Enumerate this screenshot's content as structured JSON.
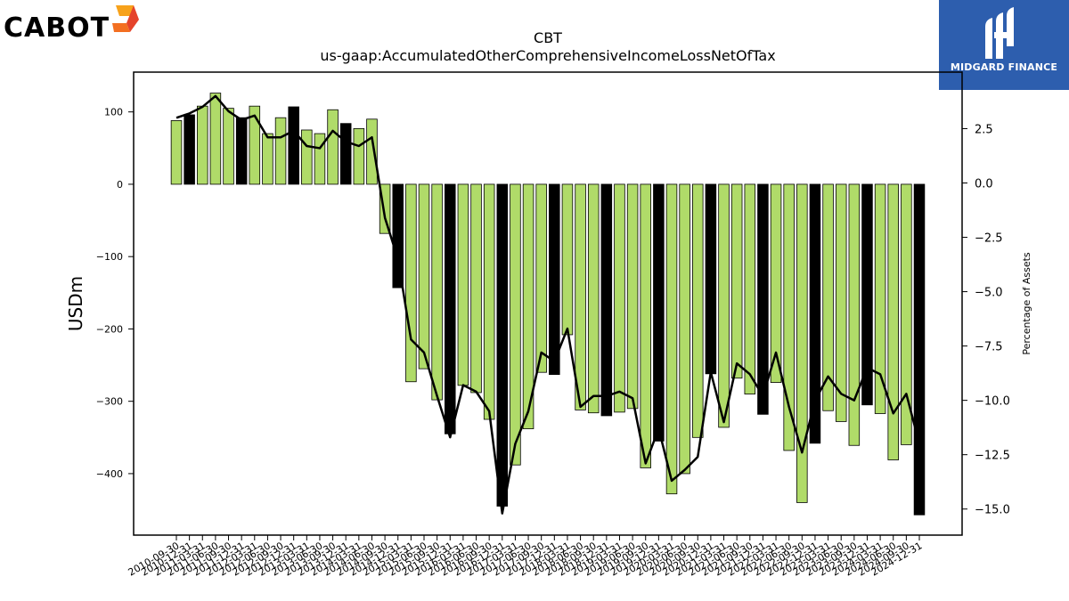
{
  "brand": {
    "left_logo": "CABOT",
    "right_logo": "MIDGARD FINANCE"
  },
  "colors": {
    "bar_normal": "#b0db69",
    "bar_q4": "#000000",
    "line": "#000000",
    "right_panel": "#2d5eae"
  },
  "chart_data": {
    "type": "bar",
    "title": "CBT",
    "subtitle": "us-gaap:AccumulatedOtherComprehensiveIncomeLossNetOfTax",
    "ylabel": "USDm",
    "y2label": "Percentage of Assets",
    "ylim": [
      -485,
      155
    ],
    "y2lim": [
      -16.2,
      5.1
    ],
    "yticks": [
      100,
      0,
      -100,
      -200,
      -300,
      -400
    ],
    "y2ticks": [
      2.5,
      0.0,
      -2.5,
      -5.0,
      -7.5,
      -10.0,
      -12.5,
      -15.0
    ],
    "grid": false,
    "categories": [
      "2010-09-30",
      "2010-12-31",
      "2011-03-31",
      "2011-06-30",
      "2011-09-30",
      "2011-12-31",
      "2012-03-31",
      "2012-06-30",
      "2012-09-30",
      "2012-12-31",
      "2013-03-31",
      "2013-06-30",
      "2013-09-30",
      "2013-12-31",
      "2014-03-31",
      "2014-06-30",
      "2014-09-30",
      "2014-12-31",
      "2015-03-31",
      "2015-06-30",
      "2015-09-30",
      "2015-12-31",
      "2016-03-31",
      "2016-06-30",
      "2016-09-30",
      "2016-12-31",
      "2017-03-31",
      "2017-06-30",
      "2017-09-30",
      "2017-12-31",
      "2018-03-31",
      "2018-06-30",
      "2018-09-30",
      "2018-12-31",
      "2019-03-31",
      "2019-06-30",
      "2019-09-30",
      "2019-12-31",
      "2020-03-31",
      "2020-06-30",
      "2020-09-30",
      "2020-12-31",
      "2021-03-31",
      "2021-06-30",
      "2021-09-30",
      "2021-12-31",
      "2022-03-31",
      "2022-06-30",
      "2022-09-30",
      "2022-12-31",
      "2023-03-31",
      "2023-06-30",
      "2023-09-30",
      "2023-12-31",
      "2024-03-31",
      "2024-06-30",
      "2024-09-30",
      "2024-12-31"
    ],
    "series": [
      {
        "values": [
          88,
          96,
          108,
          126,
          105,
          92,
          108,
          70,
          92,
          107,
          75,
          70,
          103,
          84,
          77,
          90,
          -68,
          -143,
          -273,
          -255,
          -298,
          -345,
          -278,
          -288,
          -325,
          -445,
          -388,
          -338,
          -260,
          -263,
          -208,
          -312,
          -316,
          -320,
          -315,
          -310,
          -392,
          -355,
          -428,
          -400,
          -350,
          -262,
          -336,
          -268,
          -290,
          -318,
          -274,
          -368,
          -440,
          -358,
          -313,
          -328,
          -361,
          -305,
          -317,
          -381,
          -360,
          -457
        ]
      },
      {
        "values": [
          3.0,
          3.2,
          3.5,
          4.0,
          3.3,
          2.9,
          3.1,
          2.1,
          2.1,
          2.4,
          1.7,
          1.6,
          2.4,
          1.9,
          1.7,
          2.1,
          -1.6,
          -3.5,
          -7.2,
          -7.8,
          -9.8,
          -11.7,
          -9.3,
          -9.6,
          -10.5,
          -15.2,
          -12.0,
          -10.5,
          -7.8,
          -8.2,
          -6.7,
          -10.3,
          -9.8,
          -9.8,
          -9.6,
          -9.9,
          -12.9,
          -11.3,
          -13.7,
          -13.2,
          -12.6,
          -8.7,
          -11.0,
          -8.3,
          -8.8,
          -9.8,
          -7.8,
          -10.3,
          -12.4,
          -10.0,
          -8.9,
          -9.7,
          -10.0,
          -8.5,
          -8.8,
          -10.6,
          -9.7,
          -12.0
        ]
      }
    ]
  }
}
